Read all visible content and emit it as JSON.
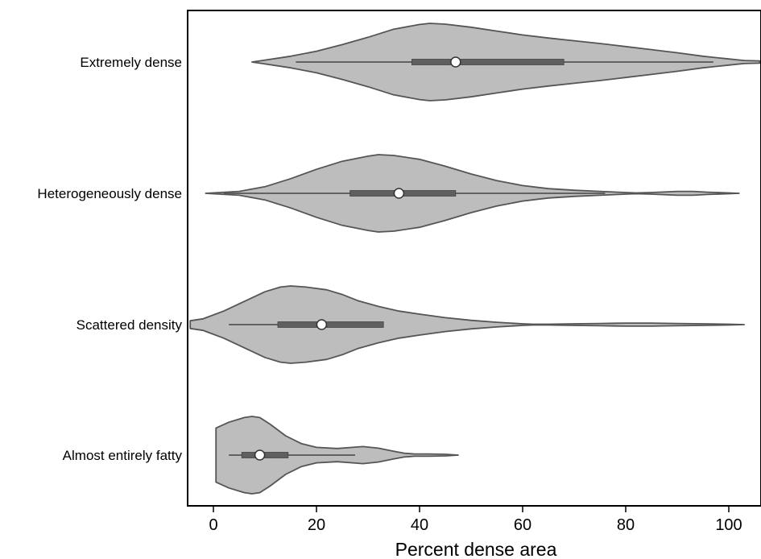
{
  "chart_data": {
    "type": "violin",
    "xlabel": "Percent dense area",
    "ylabel": "",
    "xlim": [
      -5,
      106
    ],
    "x_ticks": [
      "0",
      "20",
      "40",
      "60",
      "80",
      "100"
    ],
    "x_tick_values": [
      0,
      20,
      40,
      60,
      80,
      100
    ],
    "grid": false,
    "legend": "none",
    "colors": {
      "violin_fill": "#bdbdbd",
      "violin_edge": "#555555",
      "box": "#5f5f5f",
      "median": "#ffffff",
      "axis": "#000000"
    },
    "categories": [
      "Extremely dense",
      "Heterogeneously dense",
      "Scattered density",
      "Almost entirely fatty"
    ],
    "violins": [
      {
        "category": "Extremely dense",
        "whisker": [
          16,
          97
        ],
        "q1": 38.5,
        "q3": 68,
        "median": 47,
        "density": [
          [
            7.5,
            0
          ],
          [
            10,
            0.05
          ],
          [
            15,
            0.15
          ],
          [
            20,
            0.28
          ],
          [
            25,
            0.45
          ],
          [
            30,
            0.64
          ],
          [
            35,
            0.85
          ],
          [
            40,
            0.97
          ],
          [
            42,
            1.0
          ],
          [
            45,
            0.98
          ],
          [
            50,
            0.9
          ],
          [
            55,
            0.8
          ],
          [
            60,
            0.7
          ],
          [
            65,
            0.62
          ],
          [
            70,
            0.55
          ],
          [
            75,
            0.48
          ],
          [
            80,
            0.4
          ],
          [
            85,
            0.32
          ],
          [
            90,
            0.24
          ],
          [
            95,
            0.15
          ],
          [
            100,
            0.08
          ],
          [
            103,
            0.04
          ],
          [
            106,
            0.03
          ]
        ]
      },
      {
        "category": "Heterogeneously dense",
        "whisker": [
          2,
          76
        ],
        "q1": 26.5,
        "q3": 47,
        "median": 36,
        "density": [
          [
            -1.5,
            0
          ],
          [
            5,
            0.05
          ],
          [
            10,
            0.17
          ],
          [
            15,
            0.38
          ],
          [
            20,
            0.62
          ],
          [
            25,
            0.83
          ],
          [
            30,
            0.96
          ],
          [
            32,
            1.0
          ],
          [
            35,
            0.98
          ],
          [
            40,
            0.88
          ],
          [
            45,
            0.7
          ],
          [
            50,
            0.5
          ],
          [
            55,
            0.33
          ],
          [
            60,
            0.2
          ],
          [
            65,
            0.12
          ],
          [
            70,
            0.08
          ],
          [
            75,
            0.05
          ],
          [
            80,
            0.02
          ],
          [
            82,
            0.01
          ],
          [
            85,
            0.02
          ],
          [
            90,
            0.05
          ],
          [
            93,
            0.05
          ],
          [
            96,
            0.03
          ],
          [
            100,
            0.01
          ],
          [
            102,
            0
          ]
        ]
      },
      {
        "category": "Scattered density",
        "whisker": [
          3,
          33
        ],
        "q1": 12.5,
        "q3": 33,
        "median": 21,
        "density": [
          [
            -4.5,
            0
          ],
          [
            -4.5,
            0.1
          ],
          [
            -2,
            0.15
          ],
          [
            2,
            0.35
          ],
          [
            6,
            0.6
          ],
          [
            10,
            0.85
          ],
          [
            13,
            0.97
          ],
          [
            15,
            1.0
          ],
          [
            18,
            0.97
          ],
          [
            22,
            0.9
          ],
          [
            25,
            0.78
          ],
          [
            28,
            0.62
          ],
          [
            32,
            0.47
          ],
          [
            36,
            0.35
          ],
          [
            40,
            0.27
          ],
          [
            45,
            0.18
          ],
          [
            50,
            0.11
          ],
          [
            55,
            0.06
          ],
          [
            60,
            0.02
          ],
          [
            62,
            0.01
          ],
          [
            65,
            0.01
          ],
          [
            70,
            0.02
          ],
          [
            75,
            0.03
          ],
          [
            80,
            0.04
          ],
          [
            85,
            0.04
          ],
          [
            90,
            0.03
          ],
          [
            95,
            0.02
          ],
          [
            100,
            0.01
          ],
          [
            103,
            0
          ]
        ]
      },
      {
        "category": "Almost entirely fatty",
        "whisker": [
          3,
          27.5
        ],
        "q1": 5.5,
        "q3": 14.5,
        "median": 9,
        "density": [
          [
            0.5,
            0.7
          ],
          [
            3,
            0.85
          ],
          [
            6,
            0.97
          ],
          [
            7.5,
            1.0
          ],
          [
            9,
            0.97
          ],
          [
            11,
            0.8
          ],
          [
            14,
            0.5
          ],
          [
            17,
            0.3
          ],
          [
            20,
            0.2
          ],
          [
            24,
            0.17
          ],
          [
            27,
            0.2
          ],
          [
            29,
            0.22
          ],
          [
            32,
            0.18
          ],
          [
            35,
            0.1
          ],
          [
            37,
            0.05
          ],
          [
            39,
            0.03
          ],
          [
            42,
            0.03
          ],
          [
            45,
            0.02
          ],
          [
            47.5,
            0
          ]
        ]
      }
    ]
  }
}
